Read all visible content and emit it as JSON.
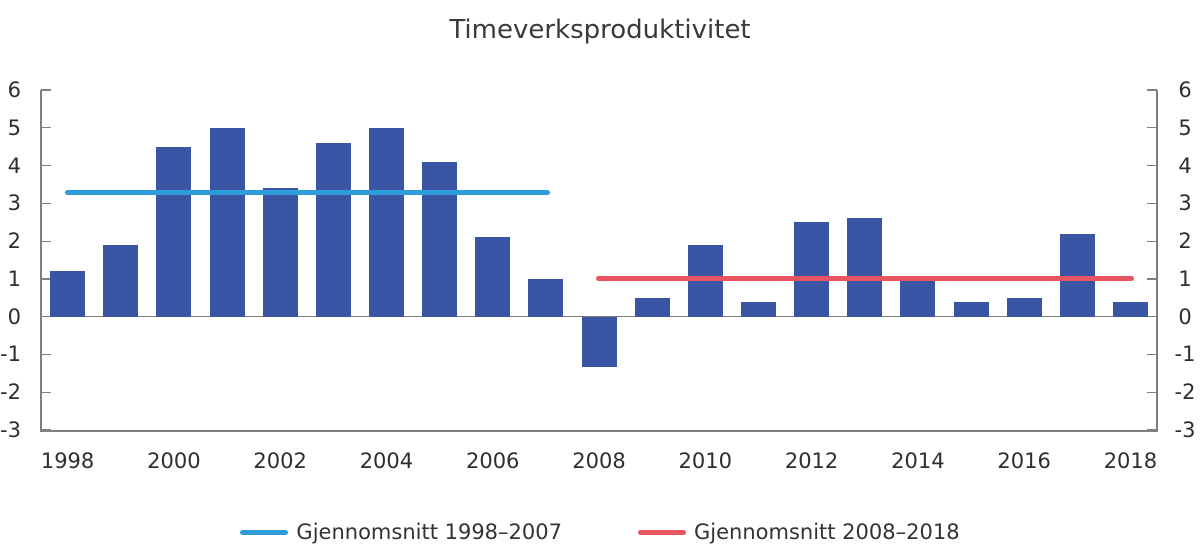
{
  "title": "Timeverksproduktivitet",
  "chart_data": {
    "type": "bar",
    "title": "Timeverksproduktivitet",
    "categories": [
      1998,
      1999,
      2000,
      2001,
      2002,
      2003,
      2004,
      2005,
      2006,
      2007,
      2008,
      2009,
      2010,
      2011,
      2012,
      2013,
      2014,
      2015,
      2016,
      2017,
      2018
    ],
    "values": [
      1.2,
      1.9,
      4.5,
      5.0,
      3.4,
      4.6,
      5.0,
      4.1,
      2.1,
      1.0,
      -1.3,
      0.5,
      1.9,
      0.4,
      2.5,
      2.6,
      1.0,
      0.4,
      0.5,
      2.2,
      0.4
    ],
    "xlabel": "",
    "ylabel": "",
    "ylim": [
      -3,
      6
    ],
    "y_ticks": [
      6,
      5,
      4,
      3,
      2,
      1,
      0,
      -1,
      -2,
      -3
    ],
    "y_axis_sides": [
      "left",
      "right"
    ],
    "x_tick_labels": [
      "1998",
      "2000",
      "2002",
      "2004",
      "2006",
      "2008",
      "2010",
      "2012",
      "2014",
      "2016",
      "2018"
    ],
    "grid": "zero-line-only",
    "legend_position": "bottom",
    "bar_color": "#3B55A5",
    "series_lines": [
      {
        "name": "Gjennomsnitt 1998–2007",
        "value": 3.28,
        "from_year": 1998,
        "to_year": 2007,
        "color": "#2E9CD8"
      },
      {
        "name": "Gjennomsnitt 2008–2018",
        "value": 1.01,
        "from_year": 2008,
        "to_year": 2018,
        "color": "#E8545F"
      }
    ]
  },
  "colors": {
    "bar": "#3B55A5",
    "avg_line_1998_2007": "#2E9CD8",
    "avg_line_2008_2018": "#E8545F",
    "axis": "#7F7F7F",
    "tick_text": "#2E2E2E",
    "title_text": "#3A3A3A",
    "background": "#FFFFFF"
  }
}
